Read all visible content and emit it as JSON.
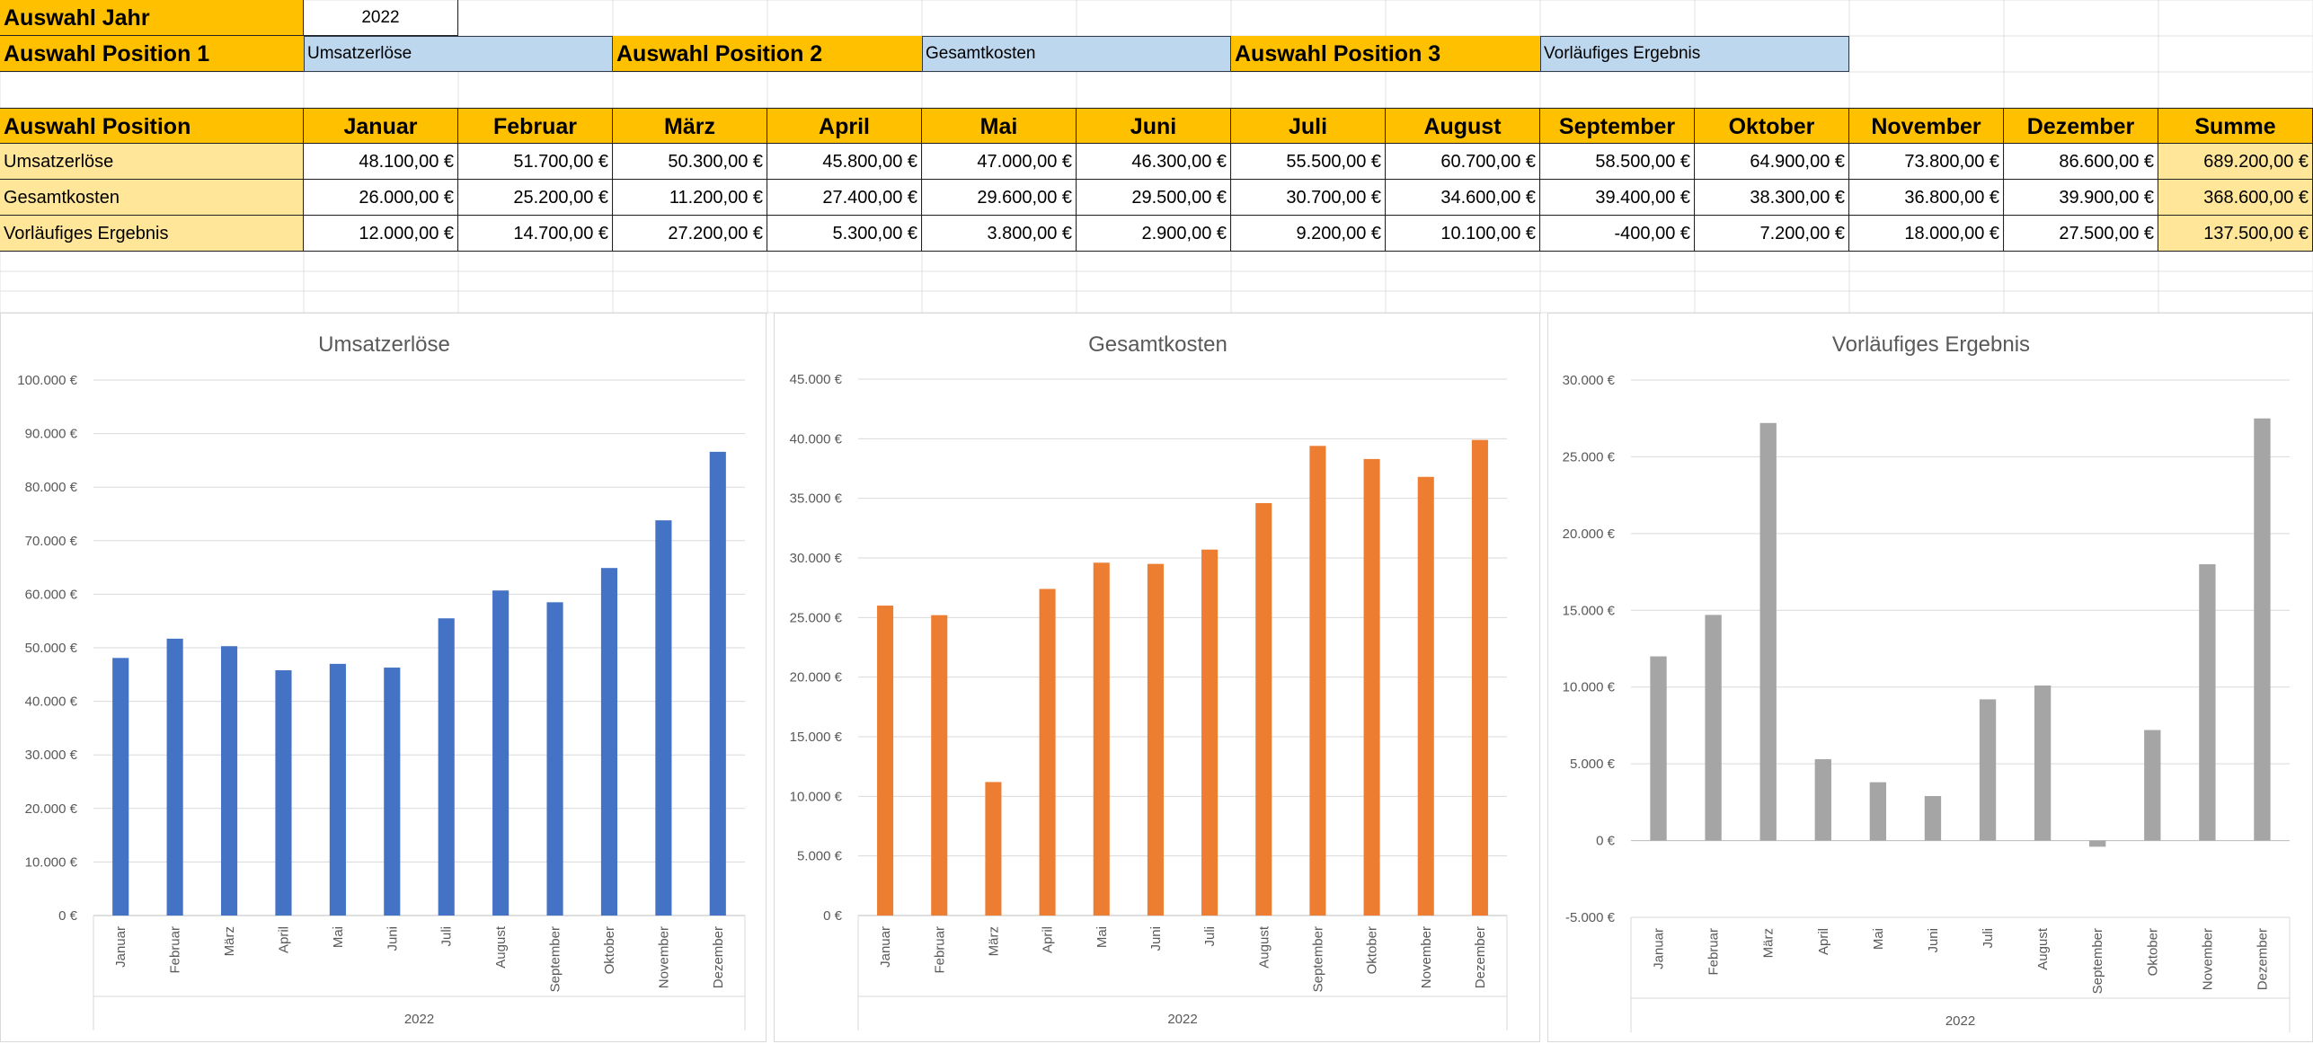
{
  "selection": {
    "year_label": "Auswahl Jahr",
    "year_value": "2022",
    "pos1_label": "Auswahl Position 1",
    "pos1_value": "Umsatzerlöse",
    "pos2_label": "Auswahl Position 2",
    "pos2_value": "Gesamtkosten",
    "pos3_label": "Auswahl Position 3",
    "pos3_value": "Vorläufiges Ergebnis"
  },
  "table": {
    "header": [
      "Auswahl Position",
      "Januar",
      "Februar",
      "März",
      "April",
      "Mai",
      "Juni",
      "Juli",
      "August",
      "September",
      "Oktober",
      "November",
      "Dezember",
      "Summe"
    ],
    "rows": [
      {
        "label": "Umsatzerlöse",
        "values": [
          "48.100,00 €",
          "51.700,00 €",
          "50.300,00 €",
          "45.800,00 €",
          "47.000,00 €",
          "46.300,00 €",
          "55.500,00 €",
          "60.700,00 €",
          "58.500,00 €",
          "64.900,00 €",
          "73.800,00 €",
          "86.600,00 €"
        ],
        "sum": "689.200,00 €"
      },
      {
        "label": "Gesamtkosten",
        "values": [
          "26.000,00 €",
          "25.200,00 €",
          "11.200,00 €",
          "27.400,00 €",
          "29.600,00 €",
          "29.500,00 €",
          "30.700,00 €",
          "34.600,00 €",
          "39.400,00 €",
          "38.300,00 €",
          "36.800,00 €",
          "39.900,00 €"
        ],
        "sum": "368.600,00 €"
      },
      {
        "label": "Vorläufiges Ergebnis",
        "values": [
          "12.000,00 €",
          "14.700,00 €",
          "27.200,00 €",
          "5.300,00 €",
          "3.800,00 €",
          "2.900,00 €",
          "9.200,00 €",
          "10.100,00 €",
          "-400,00 €",
          "7.200,00 €",
          "18.000,00 €",
          "27.500,00 €"
        ],
        "sum": "137.500,00 €"
      }
    ]
  },
  "colors": {
    "blue": "#4472c4",
    "orange": "#ed7d31",
    "gray": "#a5a5a5",
    "header": "#ffc000"
  },
  "chart_data": [
    {
      "type": "bar",
      "title": "Umsatzerlöse",
      "categories": [
        "Januar",
        "Februar",
        "März",
        "April",
        "Mai",
        "Juni",
        "Juli",
        "August",
        "September",
        "Oktober",
        "November",
        "Dezember"
      ],
      "group_label": "2022",
      "values": [
        48100,
        51700,
        50300,
        45800,
        47000,
        46300,
        55500,
        60700,
        58500,
        64900,
        73800,
        86600
      ],
      "ylim": [
        0,
        100000
      ],
      "yticks": [
        0,
        10000,
        20000,
        30000,
        40000,
        50000,
        60000,
        70000,
        80000,
        90000,
        100000
      ],
      "ytick_labels": [
        "0 €",
        "10.000 €",
        "20.000 €",
        "30.000 €",
        "40.000 €",
        "50.000 €",
        "60.000 €",
        "70.000 €",
        "80.000 €",
        "90.000 €",
        "100.000 €"
      ],
      "grid": true
    },
    {
      "type": "bar",
      "title": "Gesamtkosten",
      "categories": [
        "Januar",
        "Februar",
        "März",
        "April",
        "Mai",
        "Juni",
        "Juli",
        "August",
        "September",
        "Oktober",
        "November",
        "Dezember"
      ],
      "group_label": "2022",
      "values": [
        26000,
        25200,
        11200,
        27400,
        29600,
        29500,
        30700,
        34600,
        39400,
        38300,
        36800,
        39900
      ],
      "ylim": [
        0,
        45000
      ],
      "yticks": [
        0,
        5000,
        10000,
        15000,
        20000,
        25000,
        30000,
        35000,
        40000,
        45000
      ],
      "ytick_labels": [
        "0 €",
        "5.000 €",
        "10.000 €",
        "15.000 €",
        "20.000 €",
        "25.000 €",
        "30.000 €",
        "35.000 €",
        "40.000 €",
        "45.000 €"
      ],
      "grid": true
    },
    {
      "type": "bar",
      "title": "Vorläufiges Ergebnis",
      "categories": [
        "Januar",
        "Februar",
        "März",
        "April",
        "Mai",
        "Juni",
        "Juli",
        "August",
        "September",
        "Oktober",
        "November",
        "Dezember"
      ],
      "group_label": "2022",
      "values": [
        12000,
        14700,
        27200,
        5300,
        3800,
        2900,
        9200,
        10100,
        -400,
        7200,
        18000,
        27500
      ],
      "ylim": [
        -5000,
        30000
      ],
      "yticks": [
        -5000,
        0,
        5000,
        10000,
        15000,
        20000,
        25000,
        30000
      ],
      "ytick_labels": [
        "-5.000 €",
        "0 €",
        "5.000 €",
        "10.000 €",
        "15.000 €",
        "20.000 €",
        "25.000 €",
        "30.000 €"
      ],
      "grid": true
    }
  ]
}
